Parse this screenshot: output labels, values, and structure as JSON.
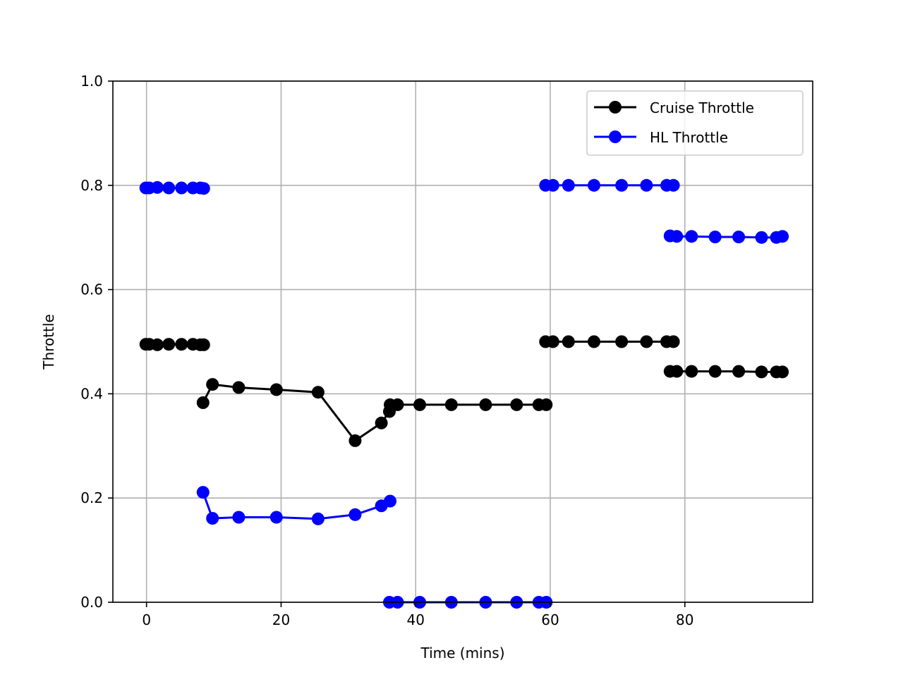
{
  "chart_data": {
    "type": "line",
    "title": "",
    "xlabel": "Time (mins)",
    "ylabel": "Throttle",
    "xlim": [
      -5,
      99
    ],
    "ylim": [
      0.0,
      1.0
    ],
    "xticks": [
      0,
      20,
      40,
      60,
      80
    ],
    "yticks": [
      0.0,
      0.2,
      0.4,
      0.6,
      0.8,
      1.0
    ],
    "xtick_labels": [
      "0",
      "20",
      "40",
      "60",
      "80"
    ],
    "ytick_labels": [
      "0.0",
      "0.2",
      "0.4",
      "0.6",
      "0.8",
      "1.0"
    ],
    "grid": true,
    "legend": "top-right",
    "series": [
      {
        "name": "Cruise Throttle",
        "color": "#000000",
        "marker": "circle",
        "segments": [
          [
            [
              -0.1,
              0.495
            ],
            [
              0.4,
              0.495
            ],
            [
              1.6,
              0.494
            ],
            [
              3.3,
              0.495
            ],
            [
              5.2,
              0.495
            ],
            [
              6.9,
              0.495
            ],
            [
              8.0,
              0.494
            ],
            [
              8.5,
              0.494
            ]
          ],
          [
            [
              8.4,
              0.383
            ],
            [
              9.8,
              0.418
            ],
            [
              13.7,
              0.412
            ],
            [
              19.3,
              0.408
            ],
            [
              25.5,
              0.403
            ],
            [
              31.0,
              0.31
            ],
            [
              34.9,
              0.344
            ],
            [
              36.1,
              0.366
            ],
            [
              36.2,
              0.379
            ],
            [
              37.3,
              0.379
            ],
            [
              40.6,
              0.379
            ],
            [
              45.3,
              0.379
            ],
            [
              50.4,
              0.379
            ],
            [
              55.0,
              0.379
            ],
            [
              58.3,
              0.379
            ],
            [
              59.4,
              0.379
            ]
          ],
          [
            [
              59.3,
              0.5
            ],
            [
              60.4,
              0.5
            ],
            [
              62.7,
              0.5
            ],
            [
              66.5,
              0.5
            ],
            [
              70.6,
              0.5
            ],
            [
              74.3,
              0.5
            ],
            [
              77.3,
              0.5
            ],
            [
              78.3,
              0.5
            ]
          ],
          [
            [
              77.8,
              0.443
            ],
            [
              78.8,
              0.443
            ],
            [
              81.0,
              0.443
            ],
            [
              84.5,
              0.443
            ],
            [
              88.0,
              0.443
            ],
            [
              91.4,
              0.442
            ],
            [
              93.6,
              0.442
            ],
            [
              94.5,
              0.442
            ]
          ]
        ]
      },
      {
        "name": "HL Throttle",
        "color": "#0000ff",
        "marker": "circle",
        "segments": [
          [
            [
              -0.1,
              0.795
            ],
            [
              0.4,
              0.795
            ],
            [
              1.6,
              0.796
            ],
            [
              3.3,
              0.795
            ],
            [
              5.2,
              0.795
            ],
            [
              6.9,
              0.795
            ],
            [
              8.0,
              0.795
            ],
            [
              8.5,
              0.794
            ]
          ],
          [
            [
              8.4,
              0.211
            ],
            [
              9.8,
              0.161
            ],
            [
              13.7,
              0.163
            ],
            [
              19.3,
              0.163
            ],
            [
              25.5,
              0.16
            ],
            [
              31.0,
              0.168
            ],
            [
              34.9,
              0.185
            ],
            [
              36.2,
              0.194
            ]
          ],
          [
            [
              36.1,
              0.0
            ],
            [
              37.3,
              0.0
            ],
            [
              40.6,
              0.0
            ],
            [
              45.3,
              0.0
            ],
            [
              50.4,
              0.0
            ],
            [
              55.0,
              0.0
            ],
            [
              58.3,
              0.0
            ],
            [
              59.4,
              0.0
            ]
          ],
          [
            [
              59.3,
              0.8
            ],
            [
              60.4,
              0.8
            ],
            [
              62.7,
              0.8
            ],
            [
              66.5,
              0.8
            ],
            [
              70.6,
              0.8
            ],
            [
              74.3,
              0.8
            ],
            [
              77.3,
              0.8
            ],
            [
              78.3,
              0.8
            ]
          ],
          [
            [
              77.8,
              0.703
            ],
            [
              78.8,
              0.702
            ],
            [
              81.0,
              0.702
            ],
            [
              84.5,
              0.701
            ],
            [
              88.0,
              0.701
            ],
            [
              91.4,
              0.7
            ],
            [
              93.6,
              0.7
            ],
            [
              94.5,
              0.702
            ]
          ]
        ]
      }
    ]
  }
}
